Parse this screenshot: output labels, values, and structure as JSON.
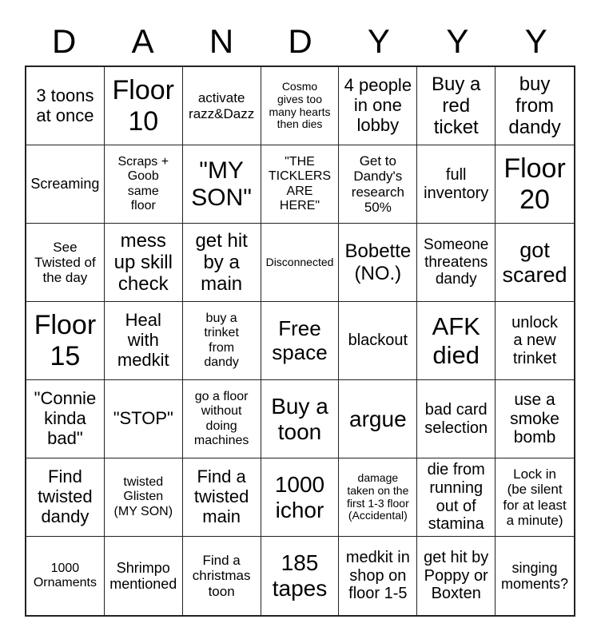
{
  "page": {
    "background_color": "#ffffff",
    "border_color": "#222222",
    "text_color": "#000000"
  },
  "title": {
    "letters": [
      "D",
      "A",
      "N",
      "D",
      "Y",
      "Y",
      "Y"
    ]
  },
  "grid": {
    "rows": [
      [
        {
          "text": "3 toons\nat once",
          "size": 22
        },
        {
          "text": "Floor\n10",
          "size": 34
        },
        {
          "text": "activate\nrazz&Dazz",
          "size": 17
        },
        {
          "text": "Cosmo\ngives too\nmany hearts\nthen dies",
          "size": 14
        },
        {
          "text": "4 people\nin one\nlobby",
          "size": 22
        },
        {
          "text": "Buy a\nred\nticket",
          "size": 24
        },
        {
          "text": "buy\nfrom\ndandy",
          "size": 24
        }
      ],
      [
        {
          "text": "Screaming",
          "size": 18
        },
        {
          "text": "Scraps +\nGoob\nsame\nfloor",
          "size": 16
        },
        {
          "text": "\"MY\nSON\"",
          "size": 30
        },
        {
          "text": "\"THE\nTICKLERS\nARE\nHERE\"",
          "size": 16
        },
        {
          "text": "Get to\nDandy's\nresearch\n50%",
          "size": 17
        },
        {
          "text": "full\ninventory",
          "size": 20
        },
        {
          "text": "Floor\n20",
          "size": 34
        }
      ],
      [
        {
          "text": "See\nTwisted of\nthe day",
          "size": 17
        },
        {
          "text": "mess\nup skill\ncheck",
          "size": 24
        },
        {
          "text": "get hit\nby a\nmain",
          "size": 24
        },
        {
          "text": "Disconnected",
          "size": 14
        },
        {
          "text": "Bobette\n(NO.)",
          "size": 24
        },
        {
          "text": "Someone\nthreatens\ndandy",
          "size": 19
        },
        {
          "text": "got\nscared",
          "size": 27
        }
      ],
      [
        {
          "text": "Floor\n15",
          "size": 34
        },
        {
          "text": "Heal\nwith\nmedkit",
          "size": 22
        },
        {
          "text": "buy a\ntrinket\nfrom\ndandy",
          "size": 16
        },
        {
          "text": "Free\nspace",
          "size": 26
        },
        {
          "text": "blackout",
          "size": 20
        },
        {
          "text": "AFK\ndied",
          "size": 31
        },
        {
          "text": "unlock\na new\ntrinket",
          "size": 20
        }
      ],
      [
        {
          "text": "\"Connie\nkinda\nbad\"",
          "size": 22
        },
        {
          "text": "\"STOP\"",
          "size": 22
        },
        {
          "text": "go a floor\nwithout\ndoing\nmachines",
          "size": 16
        },
        {
          "text": "Buy a\ntoon",
          "size": 28
        },
        {
          "text": "argue",
          "size": 28
        },
        {
          "text": "bad card\nselection",
          "size": 20
        },
        {
          "text": "use a\nsmoke\nbomb",
          "size": 21
        }
      ],
      [
        {
          "text": "Find\ntwisted\ndandy",
          "size": 22
        },
        {
          "text": "twisted\nGlisten\n(MY SON)",
          "size": 16
        },
        {
          "text": "Find a\ntwisted\nmain",
          "size": 22
        },
        {
          "text": "1000\nichor",
          "size": 28
        },
        {
          "text": "damage\ntaken on the\nfirst 1-3 floor\n(Accidental)",
          "size": 14
        },
        {
          "text": "die from\nrunning\nout of\nstamina",
          "size": 20
        },
        {
          "text": "Lock in\n(be silent\nfor at least\na minute)",
          "size": 17
        }
      ],
      [
        {
          "text": "1000\nOrnaments",
          "size": 16
        },
        {
          "text": "Shrimpo\nmentioned",
          "size": 18
        },
        {
          "text": "Find a\nchristmas\ntoon",
          "size": 17
        },
        {
          "text": "185\ntapes",
          "size": 28
        },
        {
          "text": "medkit in\nshop on\nfloor 1-5",
          "size": 20
        },
        {
          "text": "get hit by\nPoppy or\nBoxten",
          "size": 20
        },
        {
          "text": "singing\nmoments?",
          "size": 18
        }
      ]
    ]
  }
}
